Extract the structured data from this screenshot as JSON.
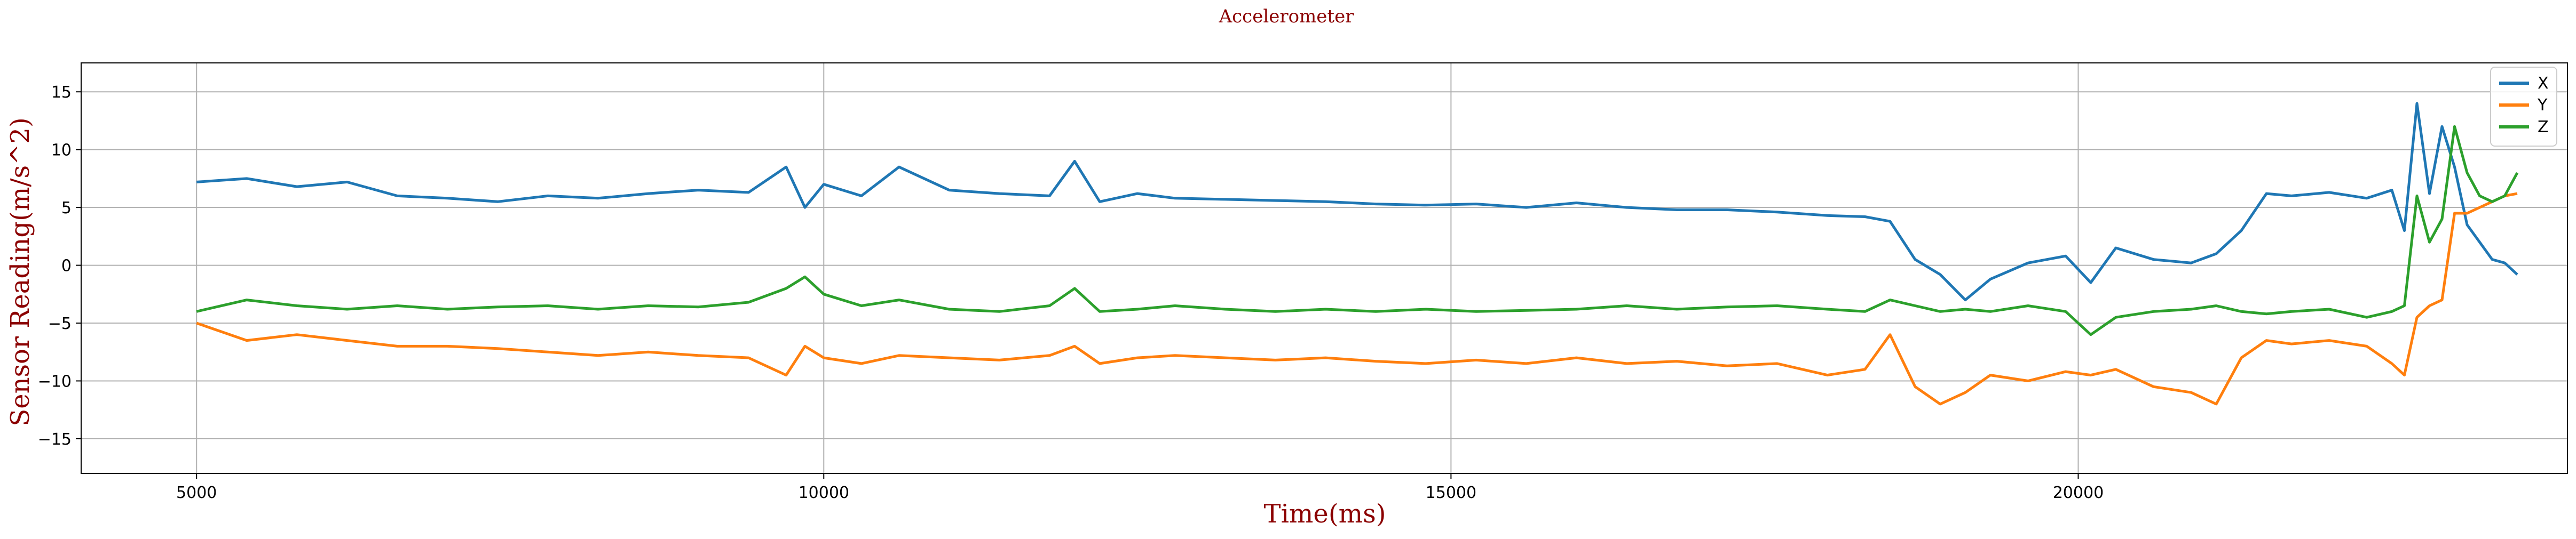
{
  "chart_data": {
    "type": "line",
    "title": "Accelerometer",
    "xlabel": "Time(ms)",
    "ylabel": "Sensor Reading(m/s^2)",
    "xlim": [
      4080,
      23900
    ],
    "ylim": [
      -18,
      17.5
    ],
    "xticks": [
      5000,
      10000,
      15000,
      20000
    ],
    "xtick_labels": [
      "5000",
      "10000",
      "15000",
      "20000"
    ],
    "yticks": [
      -15,
      -10,
      -5,
      0,
      5,
      10,
      15
    ],
    "ytick_labels": [
      "−15",
      "−10",
      "−5",
      "0",
      "5",
      "10",
      "15"
    ],
    "grid": true,
    "legend_position": "top-right",
    "title_color": "#8b0000",
    "label_color": "#8b0000",
    "series": [
      {
        "name": "X",
        "color": "#1f77b4",
        "x": [
          5000,
          5400,
          5800,
          6200,
          6600,
          7000,
          7400,
          7800,
          8200,
          8600,
          9000,
          9400,
          9700,
          9850,
          10000,
          10300,
          10600,
          11000,
          11400,
          11800,
          12000,
          12200,
          12500,
          12800,
          13200,
          13600,
          14000,
          14400,
          14800,
          15200,
          15600,
          16000,
          16400,
          16800,
          17200,
          17600,
          18000,
          18300,
          18500,
          18700,
          18900,
          19100,
          19300,
          19600,
          19900,
          20100,
          20300,
          20600,
          20900,
          21100,
          21300,
          21500,
          21700,
          22000,
          22300,
          22500,
          22600,
          22700,
          22800,
          22900,
          23000,
          23100,
          23200,
          23300,
          23400,
          23500
        ],
        "y": [
          7.2,
          7.5,
          6.8,
          7.2,
          6.0,
          5.8,
          5.5,
          6.0,
          5.8,
          6.2,
          6.5,
          6.3,
          8.5,
          5.0,
          7.0,
          6.0,
          8.5,
          6.5,
          6.2,
          6.0,
          9.0,
          5.5,
          6.2,
          5.8,
          5.7,
          5.6,
          5.5,
          5.3,
          5.2,
          5.3,
          5.0,
          5.4,
          5.0,
          4.8,
          4.8,
          4.6,
          4.3,
          4.2,
          3.8,
          0.5,
          -0.8,
          -3.0,
          -1.2,
          0.2,
          0.8,
          -1.5,
          1.5,
          0.5,
          0.2,
          1.0,
          3.0,
          6.2,
          6.0,
          6.3,
          5.8,
          6.5,
          3.0,
          14.0,
          6.2,
          12.0,
          8.5,
          3.5,
          2.0,
          0.5,
          0.2,
          -0.8
        ]
      },
      {
        "name": "Y",
        "color": "#ff7f0e",
        "x": [
          5000,
          5400,
          5800,
          6200,
          6600,
          7000,
          7400,
          7800,
          8200,
          8600,
          9000,
          9400,
          9700,
          9850,
          10000,
          10300,
          10600,
          11000,
          11400,
          11800,
          12000,
          12200,
          12500,
          12800,
          13200,
          13600,
          14000,
          14400,
          14800,
          15200,
          15600,
          16000,
          16400,
          16800,
          17200,
          17600,
          18000,
          18300,
          18500,
          18700,
          18900,
          19100,
          19300,
          19600,
          19900,
          20100,
          20300,
          20600,
          20900,
          21100,
          21300,
          21500,
          21700,
          22000,
          22300,
          22500,
          22600,
          22700,
          22800,
          22900,
          23000,
          23100,
          23200,
          23300,
          23400,
          23500
        ],
        "y": [
          -5.0,
          -6.5,
          -6.0,
          -6.5,
          -7.0,
          -7.0,
          -7.2,
          -7.5,
          -7.8,
          -7.5,
          -7.8,
          -8.0,
          -9.5,
          -7.0,
          -8.0,
          -8.5,
          -7.8,
          -8.0,
          -8.2,
          -7.8,
          -7.0,
          -8.5,
          -8.0,
          -7.8,
          -8.0,
          -8.2,
          -8.0,
          -8.3,
          -8.5,
          -8.2,
          -8.5,
          -8.0,
          -8.5,
          -8.3,
          -8.7,
          -8.5,
          -9.5,
          -9.0,
          -6.0,
          -10.5,
          -12.0,
          -11.0,
          -9.5,
          -10.0,
          -9.2,
          -9.5,
          -9.0,
          -10.5,
          -11.0,
          -12.0,
          -8.0,
          -6.5,
          -6.8,
          -6.5,
          -7.0,
          -8.5,
          -9.5,
          -4.5,
          -3.5,
          -3.0,
          4.5,
          4.5,
          5.0,
          5.5,
          6.0,
          6.2
        ]
      },
      {
        "name": "Z",
        "color": "#2ca02c",
        "x": [
          5000,
          5400,
          5800,
          6200,
          6600,
          7000,
          7400,
          7800,
          8200,
          8600,
          9000,
          9400,
          9700,
          9850,
          10000,
          10300,
          10600,
          11000,
          11400,
          11800,
          12000,
          12200,
          12500,
          12800,
          13200,
          13600,
          14000,
          14400,
          14800,
          15200,
          15600,
          16000,
          16400,
          16800,
          17200,
          17600,
          18000,
          18300,
          18500,
          18700,
          18900,
          19100,
          19300,
          19600,
          19900,
          20100,
          20300,
          20600,
          20900,
          21100,
          21300,
          21500,
          21700,
          22000,
          22300,
          22500,
          22600,
          22700,
          22800,
          22900,
          23000,
          23100,
          23200,
          23300,
          23400,
          23500
        ],
        "y": [
          -4.0,
          -3.0,
          -3.5,
          -3.8,
          -3.5,
          -3.8,
          -3.6,
          -3.5,
          -3.8,
          -3.5,
          -3.6,
          -3.2,
          -2.0,
          -1.0,
          -2.5,
          -3.5,
          -3.0,
          -3.8,
          -4.0,
          -3.5,
          -2.0,
          -4.0,
          -3.8,
          -3.5,
          -3.8,
          -4.0,
          -3.8,
          -4.0,
          -3.8,
          -4.0,
          -3.9,
          -3.8,
          -3.5,
          -3.8,
          -3.6,
          -3.5,
          -3.8,
          -4.0,
          -3.0,
          -3.5,
          -4.0,
          -3.8,
          -4.0,
          -3.5,
          -4.0,
          -6.0,
          -4.5,
          -4.0,
          -3.8,
          -3.5,
          -4.0,
          -4.2,
          -4.0,
          -3.8,
          -4.5,
          -4.0,
          -3.5,
          6.0,
          2.0,
          4.0,
          12.0,
          8.0,
          6.0,
          5.5,
          6.0,
          8.0
        ]
      }
    ]
  }
}
